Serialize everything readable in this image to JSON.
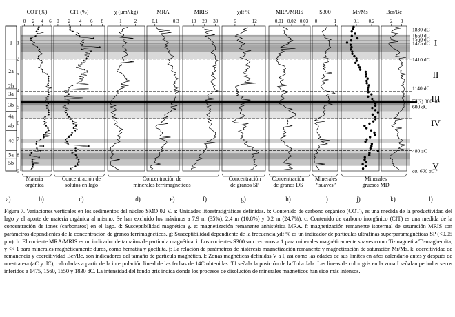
{
  "figure": {
    "panels": [
      {
        "id": "b",
        "title": "COT (%)",
        "ticks": [
          "0",
          "2",
          "4",
          "6"
        ]
      },
      {
        "id": "c",
        "title": "CIT (%)",
        "ticks": [
          "0",
          "2",
          "4",
          "6",
          "8"
        ]
      },
      {
        "id": "d",
        "title": "χ (μm³/kg)",
        "ticks": [
          "1",
          "2"
        ]
      },
      {
        "id": "e",
        "title": "MRA",
        "ticks": [
          "0.1",
          "0.3"
        ]
      },
      {
        "id": "f",
        "title": "MRIS",
        "ticks": [
          "10",
          "20",
          "30"
        ]
      },
      {
        "id": "g",
        "title": "χdf %",
        "ticks": [
          "6",
          "12"
        ]
      },
      {
        "id": "h",
        "title": "MRA/MRIS",
        "ticks": [
          "0.01",
          "0.02",
          "0.03"
        ]
      },
      {
        "id": "i",
        "title": "S300",
        "ticks": [
          "0",
          "1"
        ]
      },
      {
        "id": "j",
        "title": "Mr/Ms",
        "ticks": [
          "0.1",
          "0.2"
        ]
      },
      {
        "id": "k",
        "title": "Bcr/Bc",
        "ticks": [
          "2",
          "3"
        ]
      }
    ],
    "depth_labels": [
      "1",
      "2",
      "3",
      "4",
      "5",
      "6",
      "7",
      "8",
      "9"
    ],
    "unit_labels": [
      "1",
      "2a",
      "2b",
      "3a",
      "3b",
      "4a",
      "4b",
      "4c",
      "5a",
      "5b"
    ],
    "zones": [
      "I",
      "II",
      "III",
      "IV",
      "V"
    ],
    "date_labels": [
      "1830 dC",
      "1650 dC",
      "1560 dC",
      "1475 dC",
      "1410 dC",
      "1140 dC",
      "TJ(?) 860 dC",
      "600 dC",
      "480 aC",
      "ca. 600 aC?"
    ],
    "bottom_labels": [
      {
        "text": "Materia orgánica"
      },
      {
        "text": "Concentración de solutos en lago"
      },
      {
        "text": "Concentración de minerales ferrimagnéticos"
      },
      {
        "text": "Concentración de granos SP"
      },
      {
        "text": "Concentración de granos DS"
      },
      {
        "text": "Minerales “suaves”"
      },
      {
        "text": "Minerales gruesos MD"
      }
    ],
    "letters": [
      "a)",
      "b)",
      "c)",
      "d)",
      "e)",
      "f)",
      "g)",
      "h)",
      "i)",
      "j)",
      "k)",
      "l)"
    ]
  },
  "caption": "Figura 7. Variaciones verticales en los sedimentos del núcleo SMO 02 V. a: Unidades litoestratigráficas definidas. b: Contenido de carbono orgánico (COT), es una medida de la productividad del lago y el aporte de materia orgánica al mismo. Se han excluido los máximos a 7.9 m (35%), 2.4 m (10.8%) y 0.2 m (24.7%). c: Contenido de carbono inorgánico (CIT) es una medida de la concentración de iones (carbonatos) en el lago. d: Susceptibilidad magnética χ. e: magnetización remanente anhistérica MRA. f: magnetización remanente isotermal de saturación MRIS son parámetros dependientes de la concentración de granos ferrimagnéticos. g: Susceptibilidad dependiente de la frecuencia χdf % es un indicador de partículas ultrafinas superparamagnéticas SP (<0.05 μm). h: El cociente MRA/MRIS es un indicador de tamaños de partícula magnética. i: Los cocientes S300 son cercanos a 1 para minerales magnéticamente suaves como Ti-magnetita/Ti-maghemita, y << 1 para minerales magnéticamente duros, como hematita y goethita. j: La relación de parámetros de histéresis magnetización remanente y magnetización de saturación Mr/Ms. k: coercitividad de remanencia y coercitividad Bcr/Bc, son indicadores del tamaño de partícula magnética. l: Zonas magnéticas definidas V a I, así como las edades de sus límites en años calendario antes y después de nuestra era (aC y dC), calculadas a partir de la interpolación lineal de las fechas de 14C obtenidas. TJ señala la posición de la Toba Jala. Las líneas de color gris en la zona I señalan periodos secos inferidos a 1475, 1560, 1650 y 1830 dC. La intensidad del fondo gris indica donde los procesos de disolución de minerales magnéticos han sido más intensos."
}
